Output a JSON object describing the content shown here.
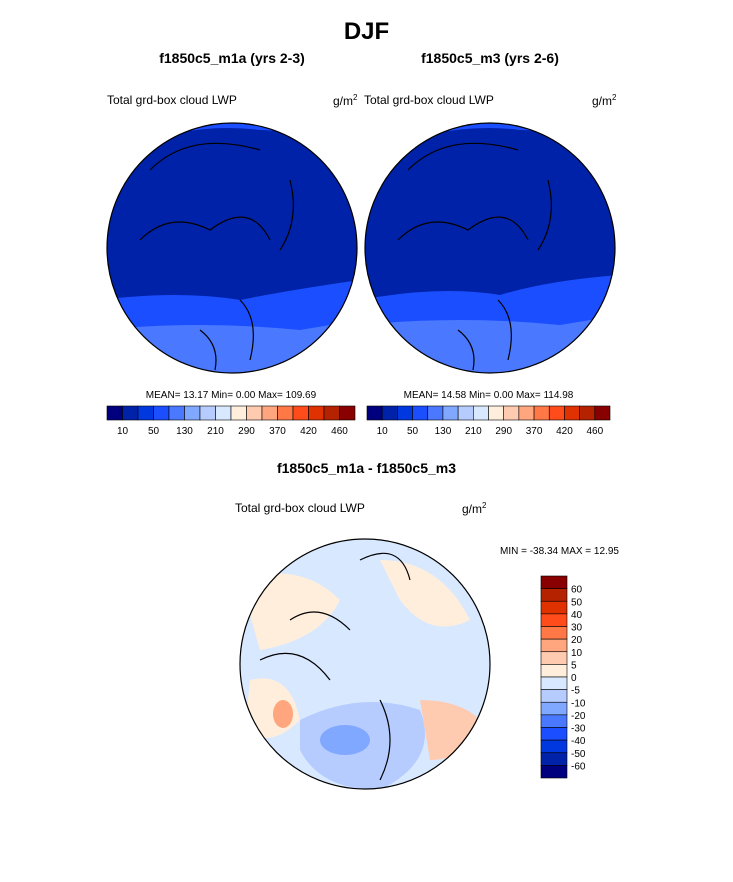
{
  "title": "DJF",
  "panels": [
    {
      "title": "f1850c5_m1a (yrs 2-3)",
      "variable": "Total grd-box cloud LWP",
      "units": "g/m",
      "units_sup": "2",
      "stats": "MEAN=  13.17  Min=   0.00  Max= 109.69"
    },
    {
      "title": "f1850c5_m3 (yrs 2-6)",
      "variable": "Total grd-box cloud LWP",
      "units": "g/m",
      "units_sup": "2",
      "stats": "MEAN=  14.58  Min=   0.00  Max= 114.98"
    }
  ],
  "diff_panel": {
    "title": "f1850c5_m1a - f1850c5_m3",
    "variable": "Total grd-box cloud LWP",
    "units": "g/m",
    "units_sup": "2",
    "stats": "MIN = -38.34 MAX =  12.95"
  },
  "chart_data": [
    {
      "type": "heatmap",
      "projection": "north-polar-stereographic",
      "legend_placement": "bottom",
      "colorbar_labels": [
        "10",
        "50",
        "130",
        "210",
        "290",
        "370",
        "420",
        "460"
      ],
      "colors": [
        "#00007f",
        "#0022a8",
        "#0038e0",
        "#1a4eff",
        "#4a78ff",
        "#80a8ff",
        "#b6ccff",
        "#d8e8ff",
        "#ffeedc",
        "#ffcbb0",
        "#ffa67e",
        "#ff7846",
        "#ff4c1a",
        "#e03200",
        "#b42200",
        "#880000"
      ]
    },
    {
      "type": "heatmap",
      "projection": "north-polar-stereographic",
      "legend_placement": "right",
      "colorbar_labels": [
        "60",
        "50",
        "40",
        "30",
        "20",
        "10",
        "5",
        "0",
        "-5",
        "-10",
        "-20",
        "-30",
        "-40",
        "-50",
        "-60"
      ],
      "colors": [
        "#880000",
        "#b42200",
        "#e03200",
        "#ff4c1a",
        "#ff7846",
        "#ffa67e",
        "#ffcbb0",
        "#ffeedc",
        "#d8e8ff",
        "#b6ccff",
        "#80a8ff",
        "#4a78ff",
        "#1a4eff",
        "#0038e0",
        "#0022a8",
        "#00007f"
      ]
    }
  ]
}
